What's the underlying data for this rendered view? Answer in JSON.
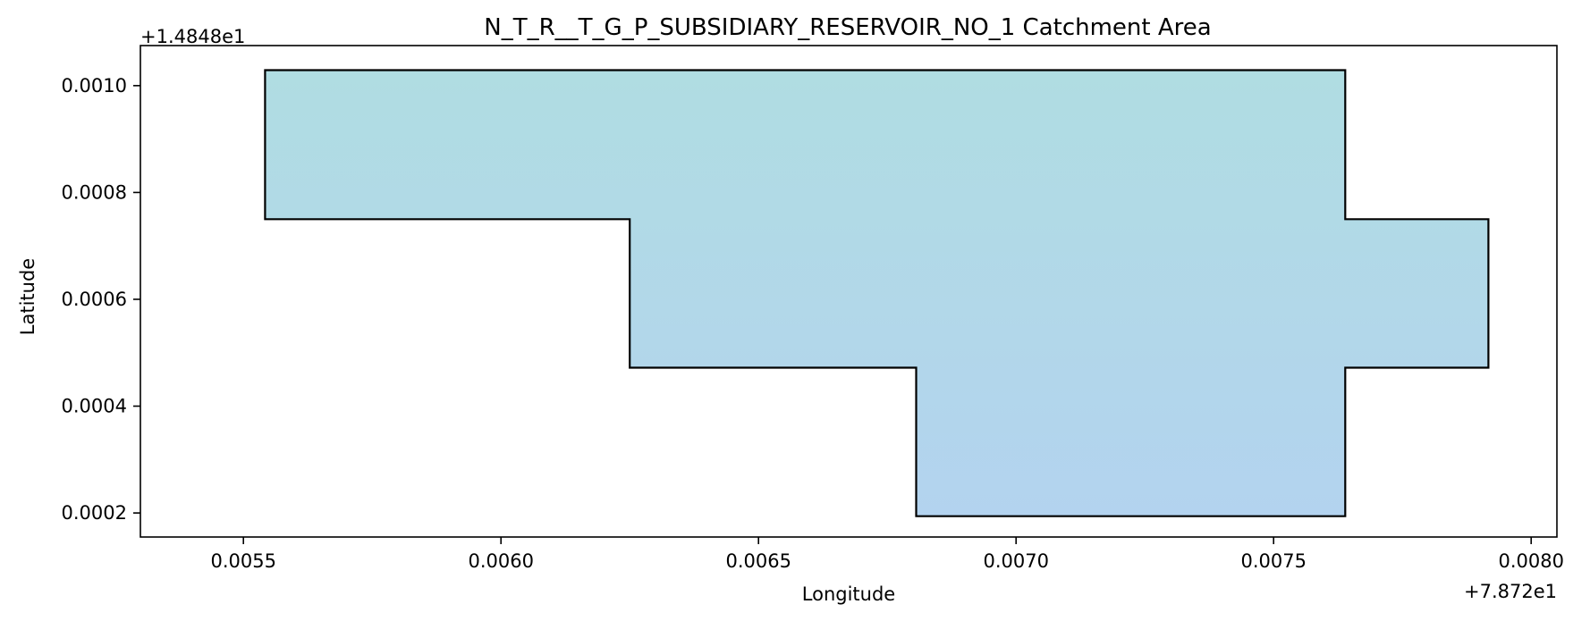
{
  "chart_data": {
    "type": "area",
    "title": "N_T_R__T_G_P_SUBSIDIARY_RESERVOIR_NO_1 Catchment Area",
    "xlabel": "Longitude",
    "ylabel": "Latitude",
    "x_offset_label": "+7.872e1",
    "y_offset_label": "+1.4848e1",
    "xlim": [
      0.0053,
      0.00805
    ],
    "ylim": [
      0.000155,
      0.001075
    ],
    "x_ticks": [
      0.0055,
      0.006,
      0.0065,
      0.007,
      0.0075,
      0.008
    ],
    "x_tick_labels": [
      "0.0055",
      "0.0060",
      "0.0065",
      "0.0070",
      "0.0075",
      "0.0080"
    ],
    "y_ticks": [
      0.0002,
      0.0004,
      0.0006,
      0.0008,
      0.001
    ],
    "y_tick_labels": [
      "0.0002",
      "0.0004",
      "0.0006",
      "0.0008",
      "0.0010"
    ],
    "grid": false,
    "polygon": {
      "name": "catchment",
      "vertices": [
        [
          0.005542,
          0.001029
        ],
        [
          0.007639,
          0.001029
        ],
        [
          0.007639,
          0.00075
        ],
        [
          0.007917,
          0.00075
        ],
        [
          0.007917,
          0.000472
        ],
        [
          0.007639,
          0.000472
        ],
        [
          0.007639,
          0.000194
        ],
        [
          0.006806,
          0.000194
        ],
        [
          0.006806,
          0.000472
        ],
        [
          0.00625,
          0.000472
        ],
        [
          0.00625,
          0.00075
        ],
        [
          0.005542,
          0.00075
        ]
      ],
      "fill_top": "#b0dde2",
      "fill_bottom": "#b3d3ef",
      "edge_color": "#000000"
    }
  }
}
